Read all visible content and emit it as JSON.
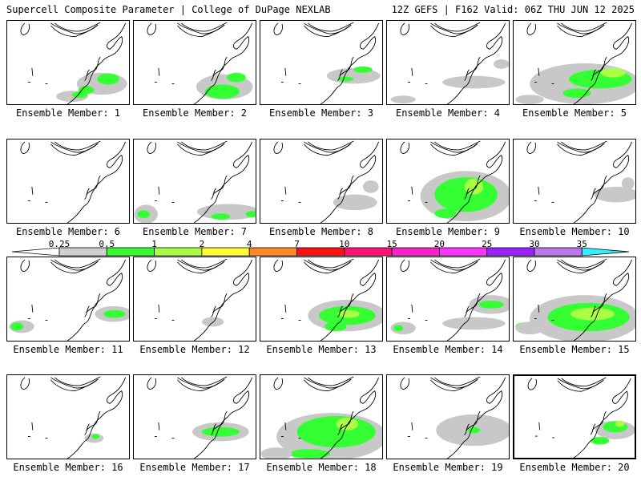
{
  "header": {
    "title_left": "Supercell Composite Parameter | College of DuPage NEXLAB",
    "title_right": "12Z GEFS | F162 Valid: 06Z THU JUN 12 2025"
  },
  "legend": {
    "tick_labels": [
      "0.25",
      "0.5",
      "1",
      "2",
      "4",
      "7",
      "10",
      "15",
      "20",
      "25",
      "30",
      "35"
    ],
    "colors": [
      "#d0d0d0",
      "#33ff33",
      "#aaff44",
      "#ffff33",
      "#ff8822",
      "#ff1111",
      "#ff1177",
      "#ff22cc",
      "#ff33ff",
      "#9922ff",
      "#bb77ee",
      "#33eeff"
    ]
  },
  "members": [
    {
      "label": "Ensemble Member: 1"
    },
    {
      "label": "Ensemble Member: 2"
    },
    {
      "label": "Ensemble Member: 3"
    },
    {
      "label": "Ensemble Member: 4"
    },
    {
      "label": "Ensemble Member: 5"
    },
    {
      "label": "Ensemble Member: 6"
    },
    {
      "label": "Ensemble Member: 7"
    },
    {
      "label": "Ensemble Member: 8"
    },
    {
      "label": "Ensemble Member: 9"
    },
    {
      "label": "Ensemble Member: 10"
    },
    {
      "label": "Ensemble Member: 11"
    },
    {
      "label": "Ensemble Member: 12"
    },
    {
      "label": "Ensemble Member: 13"
    },
    {
      "label": "Ensemble Member: 14"
    },
    {
      "label": "Ensemble Member: 15"
    },
    {
      "label": "Ensemble Member: 16"
    },
    {
      "label": "Ensemble Member: 17"
    },
    {
      "label": "Ensemble Member: 18"
    },
    {
      "label": "Ensemble Member: 19"
    },
    {
      "label": "Ensemble Member: 20",
      "selected": true
    }
  ]
}
